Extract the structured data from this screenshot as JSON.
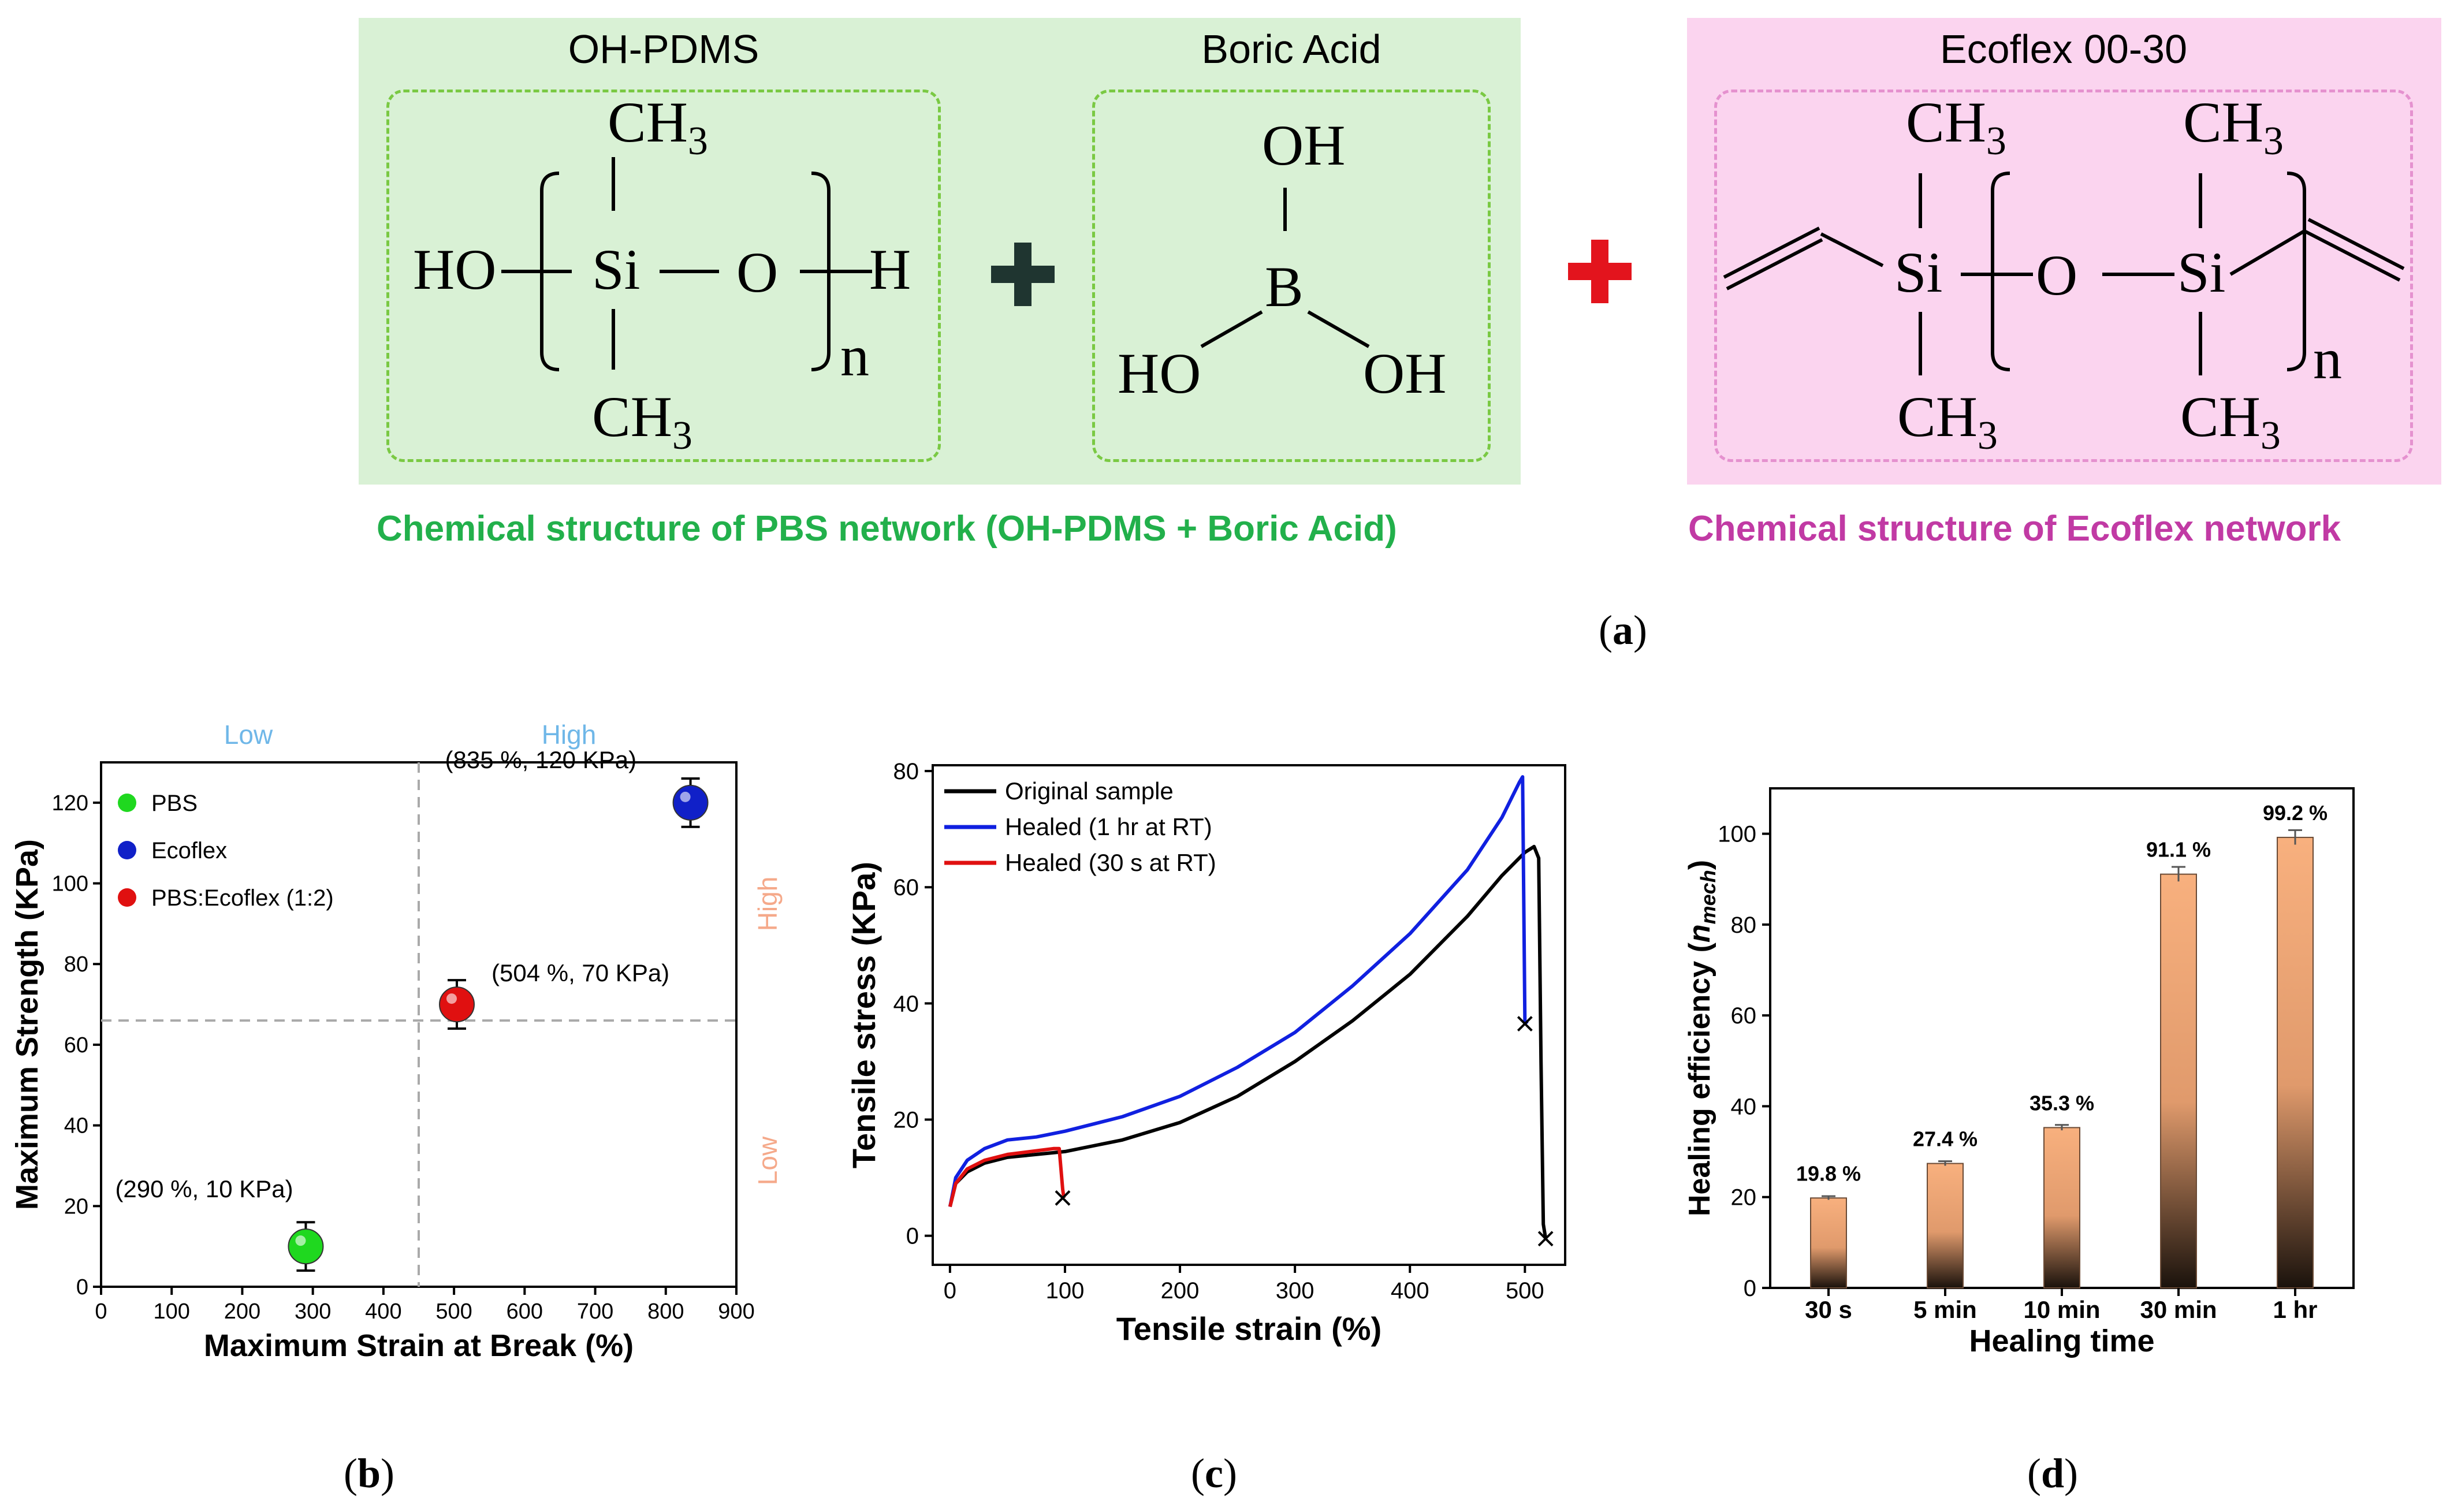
{
  "panel_a": {
    "oh_pdms_title": "OH-PDMS",
    "boric_acid_title": "Boric Acid",
    "ecoflex_title": "Ecoflex 00-30",
    "pbs_caption": "Chemical structure of PBS network (OH-PDMS + Boric Acid)",
    "ecoflex_caption": "Chemical structure of Ecoflex network",
    "plus_dark": "+",
    "plus_red": "+",
    "label": "a",
    "colors": {
      "green_bg": "#d9f1d5",
      "green_dash": "#7ac943",
      "pink_bg": "#fbd4ef",
      "pink_dash": "#e591cf",
      "green_text": "#22b04b",
      "pink_text": "#c13aa4",
      "dark_plus": "#1f3530",
      "red_plus": "#e3141d"
    },
    "chem": {
      "ch3": "CH",
      "sub3": "3",
      "ho": "HO",
      "si": "Si",
      "o": "O",
      "h": "H",
      "n": "n",
      "oh": "OH",
      "b": "B"
    }
  },
  "chart_data": [
    {
      "id": "b",
      "type": "scatter",
      "xlabel": "Maximum Strain at Break (%)",
      "ylabel": "Maximum Strength (KPa)",
      "xlim": [
        0,
        900
      ],
      "ylim": [
        0,
        130
      ],
      "xticks": [
        "0",
        "100",
        "200",
        "300",
        "400",
        "500",
        "600",
        "700",
        "800",
        "900"
      ],
      "yticks": [
        "0",
        "20",
        "40",
        "60",
        "80",
        "100",
        "120"
      ],
      "series": [
        {
          "name": "PBS",
          "color": "#1fd81f",
          "x": 290,
          "y": 10,
          "err": 6,
          "annotation": "(290 %, 10 KPa)"
        },
        {
          "name": "Ecoflex",
          "color": "#1020c8",
          "x": 835,
          "y": 120,
          "err": 6,
          "annotation": "(835 %, 120 KPa)"
        },
        {
          "name": "PBS:Ecoflex (1:2)",
          "color": "#e01010",
          "x": 504,
          "y": 70,
          "err": 6,
          "annotation": "(504 %, 70 KPa)"
        }
      ],
      "guides": {
        "x": 450,
        "y": 66
      },
      "region_labels": {
        "top_low": "Low",
        "top_high": "High",
        "right_high": "High",
        "right_low": "Low"
      },
      "label": "b"
    },
    {
      "id": "c",
      "type": "line",
      "xlabel": "Tensile strain (%)",
      "ylabel": "Tensile stress (KPa)",
      "xlim": [
        -15,
        535
      ],
      "ylim": [
        -5,
        81
      ],
      "xticks": [
        "0",
        "100",
        "200",
        "300",
        "400",
        "500"
      ],
      "yticks": [
        "0",
        "20",
        "40",
        "60",
        "80"
      ],
      "series": [
        {
          "name": "Original sample",
          "color": "#000000",
          "x": [
            0,
            5,
            15,
            30,
            50,
            75,
            100,
            150,
            200,
            250,
            300,
            350,
            400,
            450,
            480,
            500,
            508,
            512,
            514,
            516,
            518
          ],
          "y": [
            5,
            9,
            11,
            12.5,
            13.5,
            14,
            14.5,
            16.5,
            19.5,
            24,
            30,
            37,
            45,
            55,
            62,
            66,
            67,
            65,
            30,
            2,
            -0.5
          ]
        },
        {
          "name": "Healed (1 hr at RT)",
          "color": "#1020e0",
          "x": [
            0,
            5,
            15,
            30,
            50,
            75,
            100,
            150,
            200,
            250,
            300,
            350,
            400,
            450,
            480,
            495,
            498,
            500,
            502
          ],
          "y": [
            5,
            10,
            13,
            15,
            16.5,
            17,
            18,
            20.5,
            24,
            29,
            35,
            43,
            52,
            63,
            72,
            78,
            79,
            37,
            36.5
          ]
        },
        {
          "name": "Healed (30 s at RT)",
          "color": "#e01010",
          "x": [
            0,
            5,
            15,
            30,
            50,
            70,
            90,
            95,
            98,
            99
          ],
          "y": [
            5,
            9,
            11.5,
            13,
            14,
            14.5,
            15,
            15,
            8,
            6.5
          ]
        }
      ],
      "break_markers": [
        {
          "x": 98,
          "y": 6.5
        },
        {
          "x": 500,
          "y": 36.5
        },
        {
          "x": 518,
          "y": -0.5
        }
      ],
      "label": "c"
    },
    {
      "id": "d",
      "type": "bar",
      "xlabel": "Healing time",
      "ylabel_main": "Healing efficiency (",
      "ylabel_eta": "n",
      "ylabel_sub": "mech",
      "ylabel_close": ")",
      "categories": [
        "30 s",
        "5 min",
        "10 min",
        "30 min",
        "1 hr"
      ],
      "values": [
        19.8,
        27.4,
        35.3,
        91.1,
        99.2
      ],
      "errors": [
        0.4,
        0.5,
        0.6,
        1.6,
        1.6
      ],
      "data_labels": [
        "19.8 %",
        "27.4 %",
        "35.3 %",
        "91.1 %",
        "99.2 %"
      ],
      "ylim": [
        0,
        110
      ],
      "yticks": [
        "0",
        "20",
        "40",
        "60",
        "80",
        "100"
      ],
      "colors": {
        "top": "#f8b07e",
        "bottom": "#1a120c"
      },
      "label": "d"
    }
  ]
}
